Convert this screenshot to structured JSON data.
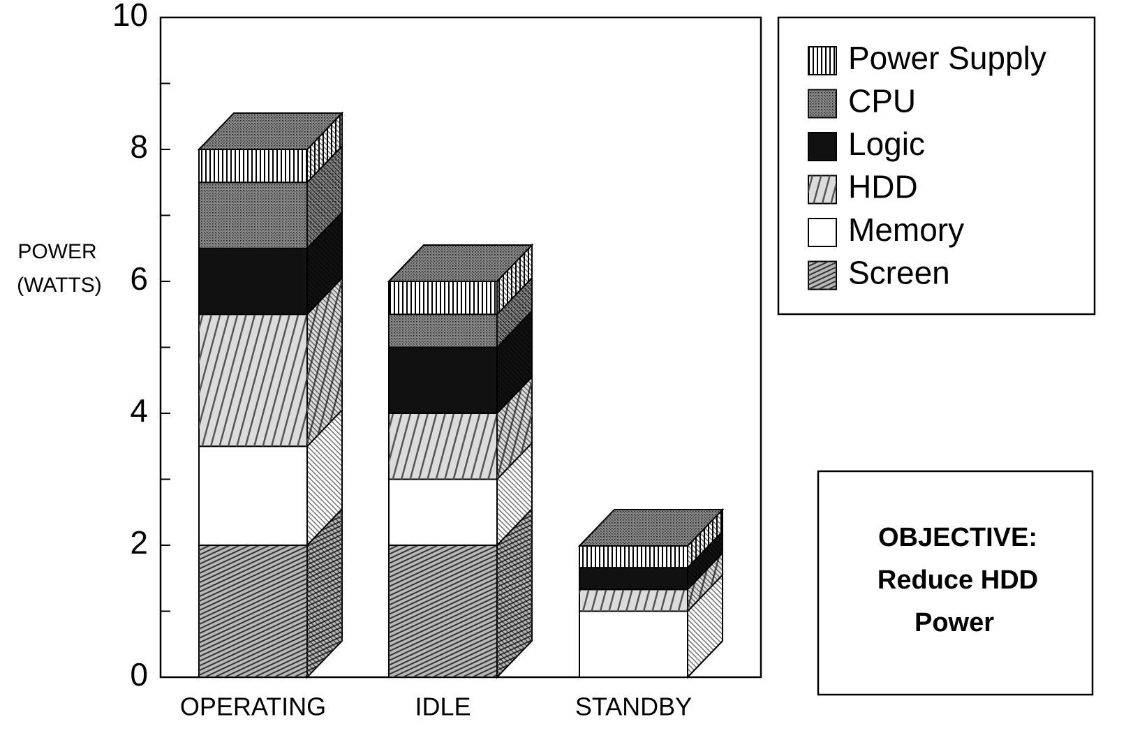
{
  "chart_data": {
    "type": "stacked-bar-3d",
    "categories": [
      "OPERATING",
      "IDLE",
      "STANDBY"
    ],
    "ylabel": [
      "POWER",
      "(WATTS)"
    ],
    "ylim": [
      0,
      10
    ],
    "yticks": [
      0,
      2,
      4,
      6,
      8,
      10
    ],
    "minor_yticks": [
      1,
      3,
      5,
      7,
      9
    ],
    "series": [
      {
        "name": "Screen",
        "color": "#b8b8b8",
        "pattern": "hatch",
        "values": [
          2,
          2,
          0
        ]
      },
      {
        "name": "Memory",
        "color": "#ffffff",
        "pattern": "none",
        "values": [
          1.5,
          1,
          1
        ]
      },
      {
        "name": "HDD",
        "color": "#dcdcdc",
        "pattern": "stripes",
        "values": [
          2,
          1,
          0.33
        ]
      },
      {
        "name": "Logic",
        "color": "#111111",
        "pattern": "none",
        "values": [
          1,
          1,
          0.33
        ]
      },
      {
        "name": "CPU",
        "color": "#8a8a8a",
        "pattern": "dots",
        "values": [
          1,
          0.5,
          0
        ]
      },
      {
        "name": "Power Supply",
        "color": "#ffffff",
        "pattern": "vertical",
        "values": [
          0.5,
          0.5,
          0.33
        ]
      }
    ],
    "legend": "top-right",
    "annotation": [
      "OBJECTIVE:",
      "Reduce HDD",
      "Power"
    ]
  }
}
